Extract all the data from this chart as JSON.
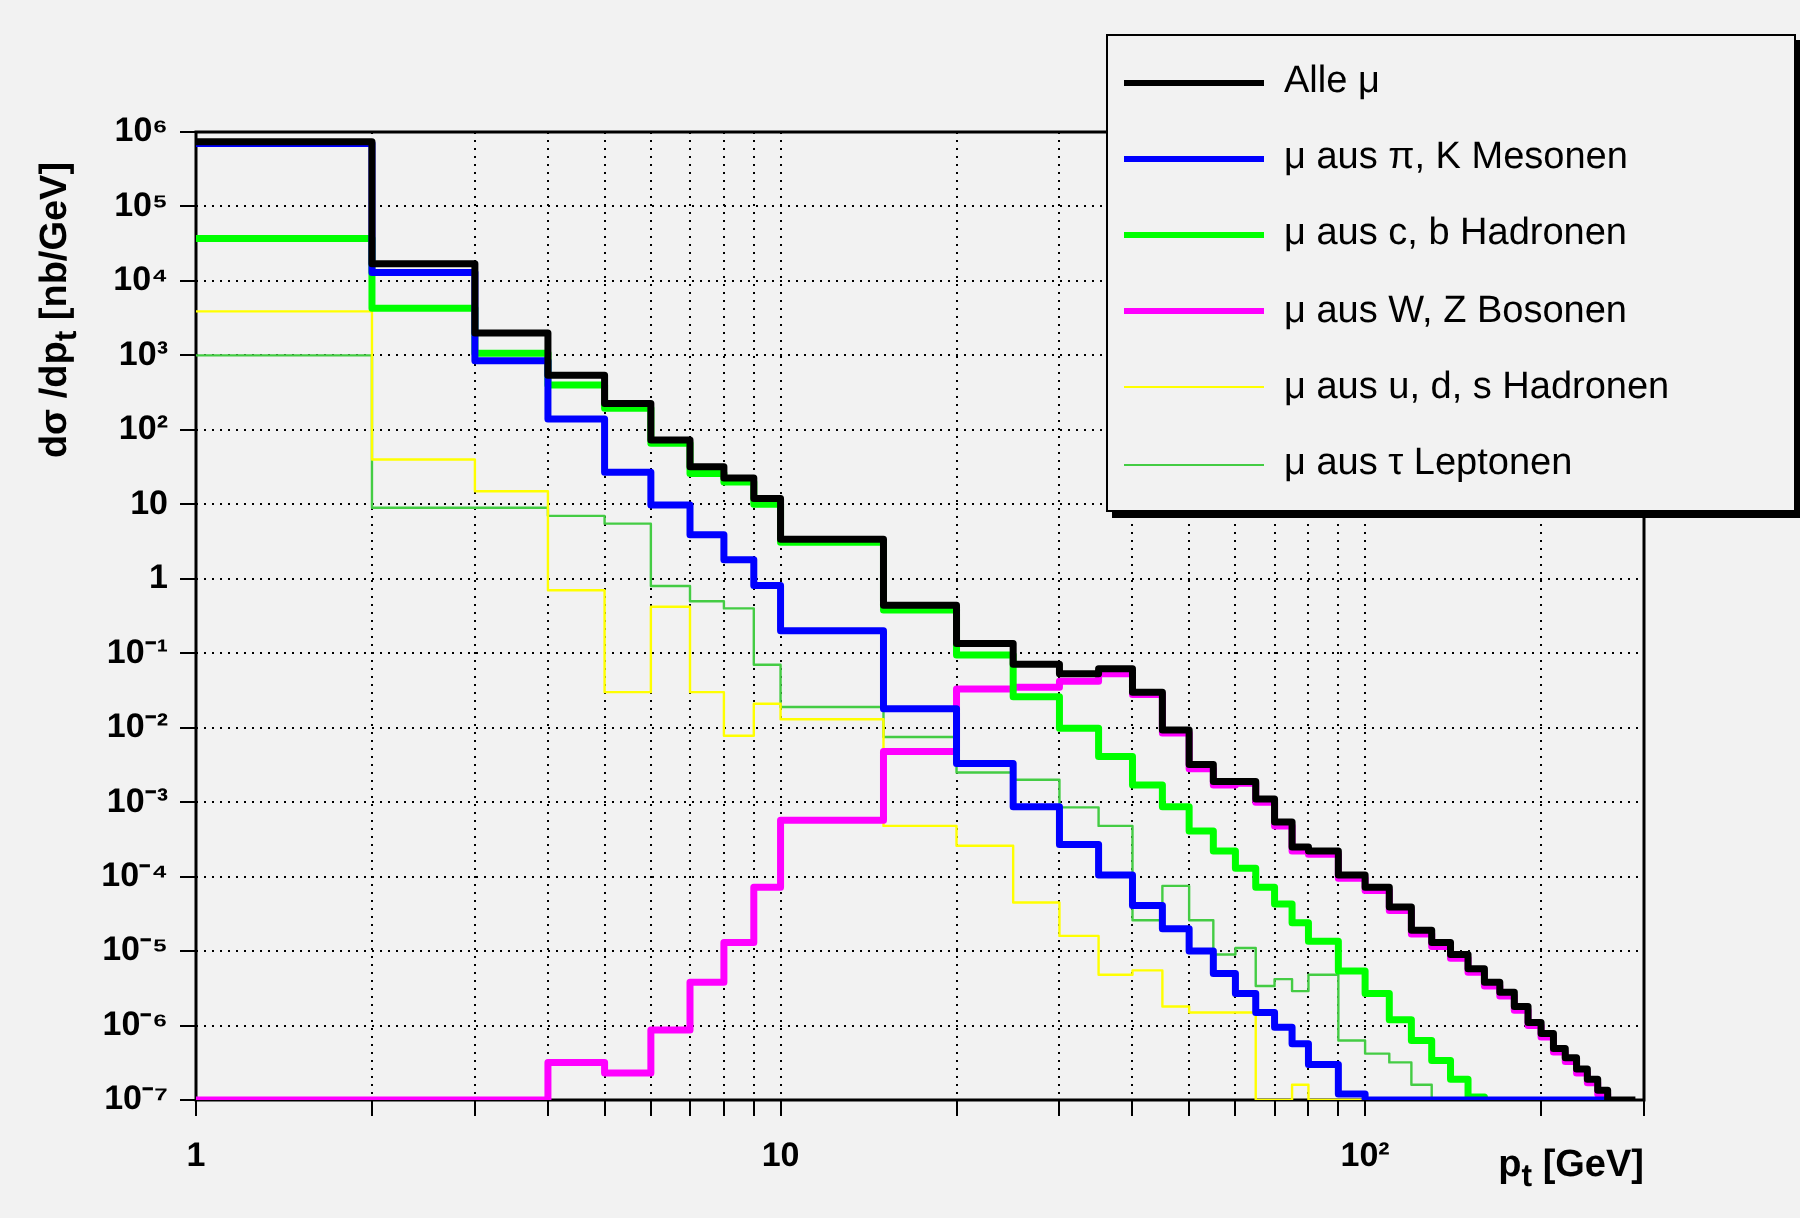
{
  "chart_data": {
    "type": "step",
    "xlabel": "p$_{t}$ [GeV]",
    "ylabel": "dσ /dp$_{t}$ [nb/GeV]",
    "log": "xy",
    "grid": true,
    "legend": "top right",
    "xlim": [
      1,
      300
    ],
    "ylim": [
      1e-07,
      1000000.0
    ],
    "xticks": [
      1,
      {
        "value": 2,
        "label": null
      },
      {
        "value": 3,
        "label": null
      },
      {
        "value": 4,
        "label": null
      },
      {
        "value": 5,
        "label": null
      },
      {
        "value": 6,
        "label": null
      },
      {
        "value": 7,
        "label": null
      },
      {
        "value": 8,
        "label": null
      },
      {
        "value": 9,
        "label": null
      },
      10,
      {
        "value": 20,
        "label": null
      },
      {
        "value": 30,
        "label": null
      },
      {
        "value": 40,
        "label": null
      },
      {
        "value": 50,
        "label": null
      },
      {
        "value": 60,
        "label": null
      },
      {
        "value": 70,
        "label": null
      },
      {
        "value": 80,
        "label": null
      },
      {
        "value": 90,
        "label": null
      },
      {
        "value": 100,
        "label": "10²"
      },
      {
        "value": 200,
        "label": null
      },
      {
        "value": 300,
        "label": null
      }
    ],
    "yticks": [
      {
        "value": 1e-07,
        "label": "10⁻⁷"
      },
      {
        "value": 1e-06,
        "label": "10⁻⁶"
      },
      {
        "value": 1e-05,
        "label": "10⁻⁵"
      },
      {
        "value": 0.0001,
        "label": "10⁻⁴"
      },
      {
        "value": 0.001,
        "label": "10⁻³"
      },
      {
        "value": 0.01,
        "label": "10⁻²"
      },
      {
        "value": 0.1,
        "label": "10⁻¹"
      },
      1,
      10,
      {
        "value": 100,
        "label": "10²"
      },
      {
        "value": 1000,
        "label": "10³"
      },
      {
        "value": 10000.0,
        "label": "10⁴"
      },
      {
        "value": 100000.0,
        "label": "10⁵"
      },
      {
        "value": 1000000.0,
        "label": "10⁶"
      }
    ],
    "x": [
      1,
      2,
      3,
      4,
      5,
      6,
      7,
      8,
      9,
      10,
      15,
      20,
      25,
      30,
      35,
      40,
      45,
      50,
      55,
      60,
      65,
      70,
      75,
      80,
      85,
      90,
      95,
      100,
      110,
      120,
      130,
      140,
      150,
      160,
      170,
      180,
      190,
      200,
      210,
      220,
      230,
      240,
      250,
      260,
      270,
      280,
      290
    ],
    "series": [
      {
        "name": "Alle μ",
        "color": "#000000",
        "values": [
          740000.0,
          17000.0,
          2000,
          540,
          225,
          73,
          32,
          22.5,
          12,
          3.4,
          0.44,
          0.135,
          0.071,
          0.053,
          0.062,
          0.03,
          0.0093,
          0.0032,
          0.0019,
          0.0019,
          0.0011,
          0.00054,
          0.00025,
          0.00022,
          0.00022,
          0.000105,
          0.000105,
          7.2e-05,
          3.9e-05,
          1.9e-05,
          1.3e-05,
          9e-06,
          5.8e-06,
          3.8e-06,
          2.8e-06,
          1.8e-06,
          1.1e-06,
          7.8e-07,
          4.9e-07,
          3.7e-07,
          2.6e-07,
          1.9e-07,
          1.35e-07,
          1e-07,
          1e-07,
          1e-07,
          1e-07
        ]
      },
      {
        "name": "μ aus π, K Mesonen",
        "color": "#0000ff",
        "values": [
          700000.0,
          13000.0,
          850,
          140,
          27,
          9.8,
          3.9,
          1.8,
          0.81,
          0.2,
          0.018,
          0.0033,
          0.00087,
          0.00027,
          0.000105,
          4.1e-05,
          2e-05,
          1e-05,
          5e-06,
          2.7e-06,
          1.5e-06,
          9.5e-07,
          5.7e-07,
          3e-07,
          3e-07,
          1.2e-07,
          1.2e-07,
          1e-07,
          1e-07,
          1e-07,
          1e-07,
          1e-07,
          1e-07,
          1e-07,
          1e-07,
          1e-07,
          1e-07,
          1e-07,
          1e-07,
          1e-07,
          1e-07,
          1e-07,
          1e-07,
          1e-07,
          null,
          null,
          null
        ]
      },
      {
        "name": "μ aus c, b Hadronen",
        "color": "#00ff00",
        "values": [
          37000.0,
          4300,
          1070,
          400,
          195,
          66,
          26,
          20,
          10,
          3.1,
          0.38,
          0.095,
          0.026,
          0.0098,
          0.0041,
          0.0017,
          0.00087,
          0.00041,
          0.00022,
          0.00013,
          7.2e-05,
          4.3e-05,
          2.4e-05,
          1.35e-05,
          1.35e-05,
          5.4e-06,
          5.4e-06,
          2.7e-06,
          1.2e-06,
          6.3e-07,
          3.4e-07,
          1.9e-07,
          1.1e-07,
          1e-07,
          null,
          null,
          null,
          null,
          null,
          null,
          null,
          null,
          null,
          null,
          null,
          null,
          null
        ]
      },
      {
        "name": "μ aus W, Z Bosonen",
        "color": "#ff00ff",
        "values": [
          1e-07,
          1e-07,
          1e-07,
          3.2e-07,
          2.3e-07,
          8.7e-07,
          3.8e-06,
          1.3e-05,
          7.2e-05,
          0.00057,
          0.0048,
          0.033,
          0.035,
          0.042,
          0.053,
          0.028,
          0.0085,
          0.0028,
          0.0017,
          0.0018,
          0.001,
          0.00048,
          0.00022,
          0.0002,
          0.0002,
          9.5e-05,
          9.5e-05,
          6.5e-05,
          3.5e-05,
          1.7e-05,
          1.15e-05,
          8e-06,
          5.2e-06,
          3.4e-06,
          2.5e-06,
          1.6e-06,
          1e-06,
          7e-07,
          4.4e-07,
          3.3e-07,
          2.3e-07,
          1.7e-07,
          1.2e-07,
          1e-07,
          null,
          null,
          null
        ]
      },
      {
        "name": "μ aus u, d, s Hadronen",
        "color": "#ffff00",
        "values": [
          3900,
          40,
          15,
          0.7,
          0.03,
          0.42,
          0.03,
          0.0078,
          0.021,
          0.013,
          0.00048,
          0.00026,
          4.5e-05,
          1.6e-05,
          4.8e-06,
          5.5e-06,
          1.8e-06,
          1.5e-06,
          1.5e-06,
          1.5e-06,
          1e-07,
          1e-07,
          1.6e-07,
          1e-07,
          1e-07,
          1e-07,
          1e-07,
          1e-07,
          null,
          null,
          null,
          null,
          null,
          null,
          null,
          null,
          null,
          null,
          null,
          null,
          null,
          null,
          null,
          null,
          null,
          null,
          null
        ]
      },
      {
        "name": "μ aus τ Leptonen",
        "color": "#44cc44",
        "values": [
          1000,
          9,
          9,
          7,
          5.5,
          0.8,
          0.5,
          0.4,
          0.07,
          0.019,
          0.0075,
          0.0025,
          0.002,
          0.00085,
          0.00048,
          2.6e-05,
          7.5e-05,
          2.6e-05,
          9e-06,
          1.1e-05,
          3.4e-06,
          4.2e-06,
          2.9e-06,
          4.8e-06,
          4.8e-06,
          6.3e-07,
          6.3e-07,
          4.2e-07,
          3.2e-07,
          1.6e-07,
          1e-07,
          null,
          null,
          null,
          null,
          null,
          null,
          null,
          null,
          null,
          null,
          null,
          null,
          null,
          null,
          null,
          null
        ]
      }
    ]
  }
}
